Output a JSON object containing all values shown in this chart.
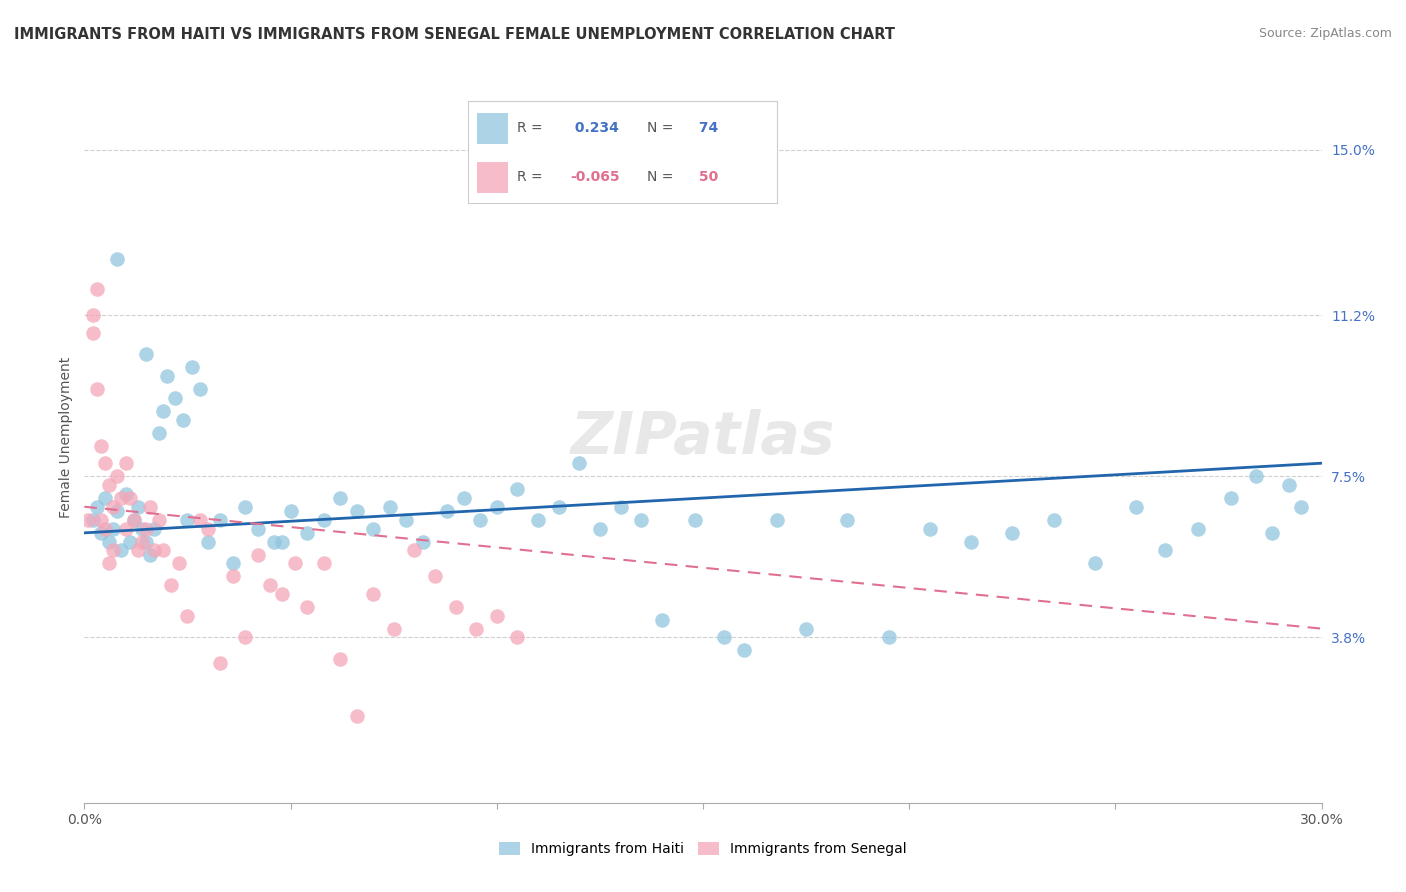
{
  "title": "IMMIGRANTS FROM HAITI VS IMMIGRANTS FROM SENEGAL FEMALE UNEMPLOYMENT CORRELATION CHART",
  "source": "Source: ZipAtlas.com",
  "ylabel": "Female Unemployment",
  "xtick_labels_shown": [
    "0.0%",
    "30.0%"
  ],
  "xtick_vals_shown": [
    0.0,
    0.3
  ],
  "xtick_minor_vals": [
    0.05,
    0.1,
    0.15,
    0.2,
    0.25
  ],
  "ytick_labels": [
    "3.8%",
    "7.5%",
    "11.2%",
    "15.0%"
  ],
  "ytick_vals": [
    0.038,
    0.075,
    0.112,
    0.15
  ],
  "xmin": 0.0,
  "xmax": 0.3,
  "ymin": 0.0,
  "ymax": 0.168,
  "haiti_color": "#92c5de",
  "senegal_color": "#f4a6b8",
  "haiti_line_color": "#2166ac",
  "senegal_line_color": "#e07090",
  "haiti_r": 0.234,
  "haiti_n": 74,
  "senegal_r": -0.065,
  "senegal_n": 50,
  "legend_label_haiti": "Immigrants from Haiti",
  "legend_label_senegal": "Immigrants from Senegal",
  "haiti_scatter_x": [
    0.002,
    0.003,
    0.004,
    0.005,
    0.006,
    0.007,
    0.008,
    0.009,
    0.01,
    0.011,
    0.012,
    0.013,
    0.014,
    0.015,
    0.016,
    0.017,
    0.018,
    0.019,
    0.02,
    0.022,
    0.024,
    0.026,
    0.028,
    0.03,
    0.033,
    0.036,
    0.039,
    0.042,
    0.046,
    0.05,
    0.054,
    0.058,
    0.062,
    0.066,
    0.07,
    0.074,
    0.078,
    0.082,
    0.088,
    0.092,
    0.096,
    0.1,
    0.105,
    0.11,
    0.115,
    0.12,
    0.125,
    0.13,
    0.135,
    0.14,
    0.148,
    0.155,
    0.16,
    0.168,
    0.175,
    0.185,
    0.195,
    0.205,
    0.215,
    0.225,
    0.235,
    0.245,
    0.255,
    0.262,
    0.27,
    0.278,
    0.284,
    0.288,
    0.292,
    0.295,
    0.008,
    0.015,
    0.025,
    0.048
  ],
  "haiti_scatter_y": [
    0.065,
    0.068,
    0.062,
    0.07,
    0.06,
    0.063,
    0.067,
    0.058,
    0.071,
    0.06,
    0.065,
    0.068,
    0.063,
    0.06,
    0.057,
    0.063,
    0.085,
    0.09,
    0.098,
    0.093,
    0.088,
    0.1,
    0.095,
    0.06,
    0.065,
    0.055,
    0.068,
    0.063,
    0.06,
    0.067,
    0.062,
    0.065,
    0.07,
    0.067,
    0.063,
    0.068,
    0.065,
    0.06,
    0.067,
    0.07,
    0.065,
    0.068,
    0.072,
    0.065,
    0.068,
    0.078,
    0.063,
    0.068,
    0.065,
    0.042,
    0.065,
    0.038,
    0.035,
    0.065,
    0.04,
    0.065,
    0.038,
    0.063,
    0.06,
    0.062,
    0.065,
    0.055,
    0.068,
    0.058,
    0.063,
    0.07,
    0.075,
    0.062,
    0.073,
    0.068,
    0.125,
    0.103,
    0.065,
    0.06
  ],
  "senegal_scatter_x": [
    0.001,
    0.002,
    0.002,
    0.003,
    0.003,
    0.004,
    0.004,
    0.005,
    0.005,
    0.006,
    0.006,
    0.007,
    0.007,
    0.008,
    0.009,
    0.01,
    0.01,
    0.011,
    0.012,
    0.013,
    0.014,
    0.015,
    0.016,
    0.017,
    0.018,
    0.019,
    0.021,
    0.023,
    0.025,
    0.028,
    0.03,
    0.033,
    0.036,
    0.039,
    0.042,
    0.045,
    0.048,
    0.051,
    0.054,
    0.058,
    0.062,
    0.066,
    0.07,
    0.075,
    0.08,
    0.085,
    0.09,
    0.095,
    0.1,
    0.105
  ],
  "senegal_scatter_y": [
    0.065,
    0.112,
    0.108,
    0.095,
    0.118,
    0.082,
    0.065,
    0.078,
    0.063,
    0.073,
    0.055,
    0.068,
    0.058,
    0.075,
    0.07,
    0.078,
    0.063,
    0.07,
    0.065,
    0.058,
    0.06,
    0.063,
    0.068,
    0.058,
    0.065,
    0.058,
    0.05,
    0.055,
    0.043,
    0.065,
    0.063,
    0.032,
    0.052,
    0.038,
    0.057,
    0.05,
    0.048,
    0.055,
    0.045,
    0.055,
    0.033,
    0.02,
    0.048,
    0.04,
    0.058,
    0.052,
    0.045,
    0.04,
    0.043,
    0.038
  ],
  "background_color": "#ffffff",
  "grid_color": "#d0d0d0",
  "title_fontsize": 10.5,
  "tick_fontsize": 10,
  "ylabel_fontsize": 10
}
